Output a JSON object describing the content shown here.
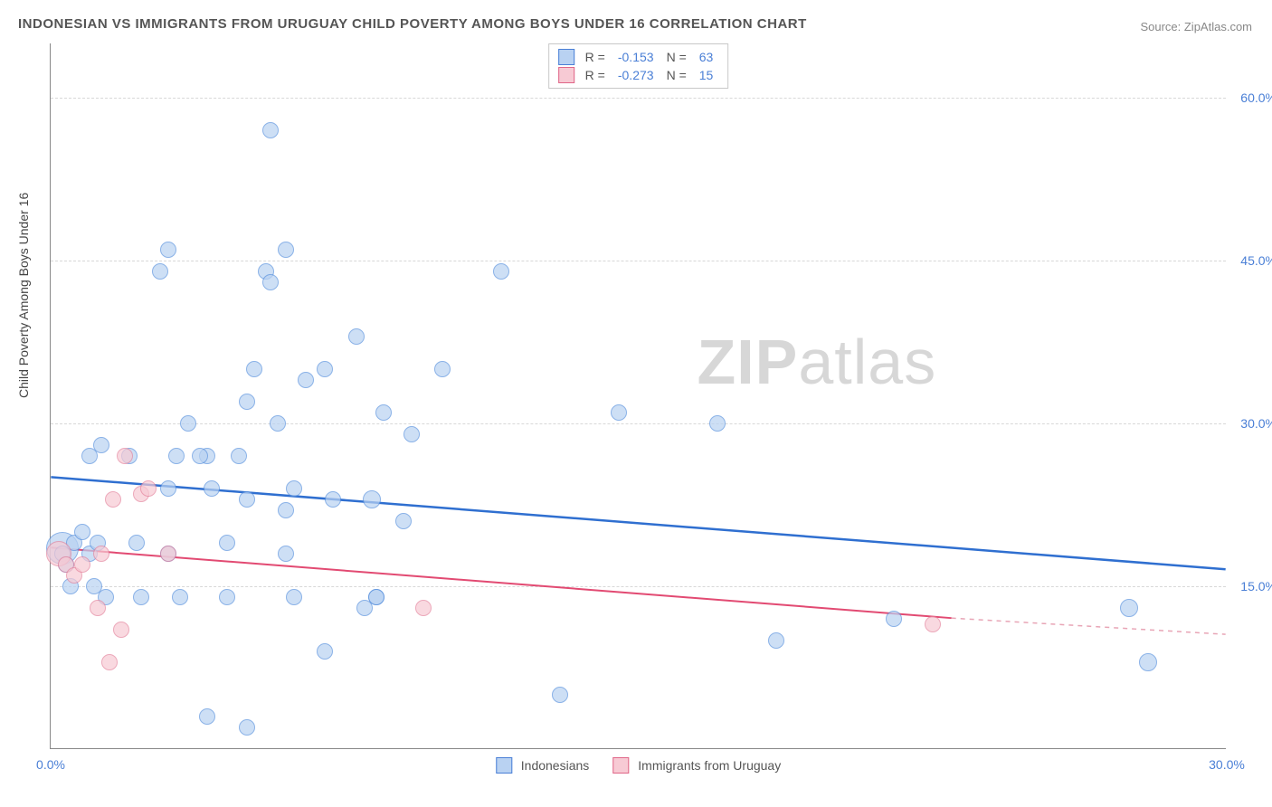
{
  "title": "INDONESIAN VS IMMIGRANTS FROM URUGUAY CHILD POVERTY AMONG BOYS UNDER 16 CORRELATION CHART",
  "source_label": "Source: ZipAtlas.com",
  "watermark": {
    "part1": "ZIP",
    "part2": "atlas"
  },
  "chart": {
    "type": "scatter",
    "ylabel": "Child Poverty Among Boys Under 16",
    "background_color": "#ffffff",
    "grid_color": "#d8d8d8",
    "axis_color": "#888888",
    "tick_color": "#4a7fd6",
    "xlim": [
      0,
      30
    ],
    "ylim": [
      0,
      65
    ],
    "xticks": [
      {
        "v": 0,
        "label": "0.0%"
      },
      {
        "v": 30,
        "label": "30.0%"
      }
    ],
    "yticks": [
      {
        "v": 15,
        "label": "15.0%"
      },
      {
        "v": 30,
        "label": "30.0%"
      },
      {
        "v": 45,
        "label": "45.0%"
      },
      {
        "v": 60,
        "label": "60.0%"
      }
    ],
    "legend_top": {
      "r_label": "R =",
      "n_label": "N =",
      "series": [
        {
          "swatch_fill": "#b9d2f2",
          "swatch_border": "#4a7fd6",
          "r": "-0.153",
          "n": "63"
        },
        {
          "swatch_fill": "#f7cad4",
          "swatch_border": "#e06688",
          "r": "-0.273",
          "n": "15"
        }
      ]
    },
    "legend_bottom": [
      {
        "swatch_fill": "#b9d2f2",
        "swatch_border": "#4a7fd6",
        "label": "Indonesians"
      },
      {
        "swatch_fill": "#f7cad4",
        "swatch_border": "#e06688",
        "label": "Immigrants from Uruguay"
      }
    ],
    "series": [
      {
        "name": "Indonesians",
        "marker_fill": "#b9d2f2",
        "marker_border": "#5a92de",
        "marker_opacity": 0.7,
        "marker_radius": 9,
        "trend": {
          "x1": 0,
          "y1": 25,
          "x2": 30,
          "y2": 16.5,
          "color": "#2f6fd0",
          "width": 2.5,
          "dash": false
        },
        "points": [
          {
            "x": 0.3,
            "y": 18.5,
            "r": 18
          },
          {
            "x": 0.3,
            "y": 18,
            "r": 9
          },
          {
            "x": 0.4,
            "y": 17,
            "r": 9
          },
          {
            "x": 0.6,
            "y": 19,
            "r": 9
          },
          {
            "x": 0.8,
            "y": 20,
            "r": 9
          },
          {
            "x": 0.5,
            "y": 15,
            "r": 9
          },
          {
            "x": 1.0,
            "y": 18,
            "r": 9
          },
          {
            "x": 1.2,
            "y": 19,
            "r": 9
          },
          {
            "x": 1.0,
            "y": 27,
            "r": 9
          },
          {
            "x": 1.3,
            "y": 28,
            "r": 9
          },
          {
            "x": 1.1,
            "y": 15,
            "r": 9
          },
          {
            "x": 1.4,
            "y": 14,
            "r": 9
          },
          {
            "x": 2.0,
            "y": 27,
            "r": 9
          },
          {
            "x": 2.2,
            "y": 19,
            "r": 9
          },
          {
            "x": 2.3,
            "y": 14,
            "r": 9
          },
          {
            "x": 3.0,
            "y": 24,
            "r": 9
          },
          {
            "x": 3.2,
            "y": 27,
            "r": 9
          },
          {
            "x": 3.0,
            "y": 46,
            "r": 9
          },
          {
            "x": 3.3,
            "y": 14,
            "r": 9
          },
          {
            "x": 3.5,
            "y": 30,
            "r": 9
          },
          {
            "x": 4.0,
            "y": 27,
            "r": 9
          },
          {
            "x": 4.1,
            "y": 24,
            "r": 9
          },
          {
            "x": 4.0,
            "y": 3,
            "r": 9
          },
          {
            "x": 4.5,
            "y": 19,
            "r": 9
          },
          {
            "x": 4.5,
            "y": 14,
            "r": 9
          },
          {
            "x": 5.0,
            "y": 23,
            "r": 9
          },
          {
            "x": 5.0,
            "y": 32,
            "r": 9
          },
          {
            "x": 5.0,
            "y": 2,
            "r": 9
          },
          {
            "x": 5.2,
            "y": 35,
            "r": 9
          },
          {
            "x": 5.5,
            "y": 44,
            "r": 9
          },
          {
            "x": 5.6,
            "y": 57,
            "r": 9
          },
          {
            "x": 5.6,
            "y": 43,
            "r": 9
          },
          {
            "x": 5.8,
            "y": 30,
            "r": 9
          },
          {
            "x": 6.0,
            "y": 22,
            "r": 9
          },
          {
            "x": 6.0,
            "y": 46,
            "r": 9
          },
          {
            "x": 6.0,
            "y": 18,
            "r": 9
          },
          {
            "x": 6.2,
            "y": 24,
            "r": 9
          },
          {
            "x": 6.2,
            "y": 14,
            "r": 9
          },
          {
            "x": 7.0,
            "y": 35,
            "r": 9
          },
          {
            "x": 7.0,
            "y": 9,
            "r": 9
          },
          {
            "x": 7.2,
            "y": 23,
            "r": 9
          },
          {
            "x": 7.8,
            "y": 38,
            "r": 9
          },
          {
            "x": 8.0,
            "y": 13,
            "r": 9
          },
          {
            "x": 8.2,
            "y": 23,
            "r": 10
          },
          {
            "x": 8.3,
            "y": 14,
            "r": 9
          },
          {
            "x": 8.3,
            "y": 14,
            "r": 9
          },
          {
            "x": 8.5,
            "y": 31,
            "r": 9
          },
          {
            "x": 9.0,
            "y": 21,
            "r": 9
          },
          {
            "x": 9.2,
            "y": 29,
            "r": 9
          },
          {
            "x": 10.0,
            "y": 35,
            "r": 9
          },
          {
            "x": 11.5,
            "y": 44,
            "r": 9
          },
          {
            "x": 13.0,
            "y": 5,
            "r": 9
          },
          {
            "x": 14.5,
            "y": 31,
            "r": 9
          },
          {
            "x": 17.0,
            "y": 30,
            "r": 9
          },
          {
            "x": 18.5,
            "y": 10,
            "r": 9
          },
          {
            "x": 21.5,
            "y": 12,
            "r": 9
          },
          {
            "x": 27.5,
            "y": 13,
            "r": 10
          },
          {
            "x": 28.0,
            "y": 8,
            "r": 10
          },
          {
            "x": 2.8,
            "y": 44,
            "r": 9
          },
          {
            "x": 3.8,
            "y": 27,
            "r": 9
          },
          {
            "x": 4.8,
            "y": 27,
            "r": 9
          },
          {
            "x": 6.5,
            "y": 34,
            "r": 9
          },
          {
            "x": 3.0,
            "y": 18,
            "r": 9
          }
        ]
      },
      {
        "name": "Immigrants from Uruguay",
        "marker_fill": "#f7cad4",
        "marker_border": "#e5849d",
        "marker_opacity": 0.7,
        "marker_radius": 9,
        "trend": {
          "x1": 0,
          "y1": 18.5,
          "x2": 23,
          "y2": 12,
          "color": "#e24a72",
          "width": 2,
          "dash": false
        },
        "trend_dash": {
          "x1": 23,
          "y1": 12,
          "x2": 30,
          "y2": 10.5,
          "color": "#e8a5b6",
          "width": 1.5,
          "dash": true
        },
        "points": [
          {
            "x": 0.2,
            "y": 18,
            "r": 14
          },
          {
            "x": 0.4,
            "y": 17,
            "r": 9
          },
          {
            "x": 0.6,
            "y": 16,
            "r": 9
          },
          {
            "x": 0.8,
            "y": 17,
            "r": 9
          },
          {
            "x": 1.2,
            "y": 13,
            "r": 9
          },
          {
            "x": 1.3,
            "y": 18,
            "r": 9
          },
          {
            "x": 1.5,
            "y": 8,
            "r": 9
          },
          {
            "x": 1.8,
            "y": 11,
            "r": 9
          },
          {
            "x": 1.6,
            "y": 23,
            "r": 9
          },
          {
            "x": 1.9,
            "y": 27,
            "r": 9
          },
          {
            "x": 2.3,
            "y": 23.5,
            "r": 9
          },
          {
            "x": 2.5,
            "y": 24,
            "r": 9
          },
          {
            "x": 3.0,
            "y": 18,
            "r": 9
          },
          {
            "x": 9.5,
            "y": 13,
            "r": 9
          },
          {
            "x": 22.5,
            "y": 11.5,
            "r": 9
          }
        ]
      }
    ]
  }
}
